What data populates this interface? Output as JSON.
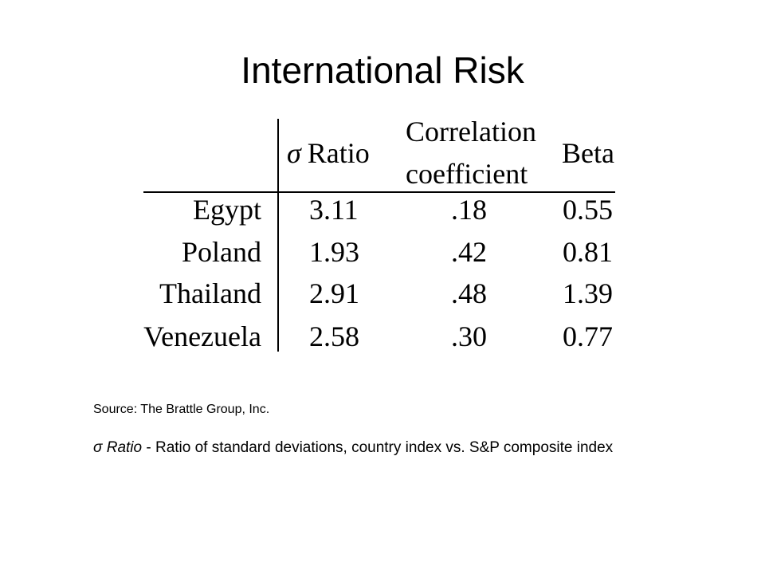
{
  "title": "International Risk",
  "table": {
    "headers": {
      "sigma_symbol": "σ",
      "sigma_label": "Ratio",
      "correlation_line1": "Correlation",
      "correlation_line2": "coefficient",
      "beta": "Beta"
    },
    "rows": [
      {
        "country": "Egypt",
        "sigma_ratio": "3.11",
        "correlation": ".18",
        "beta": "0.55"
      },
      {
        "country": "Poland",
        "sigma_ratio": "1.93",
        "correlation": ".42",
        "beta": "0.81"
      },
      {
        "country": "Thailand",
        "sigma_ratio": "2.91",
        "correlation": ".48",
        "beta": "1.39"
      },
      {
        "country": "Venezuela",
        "sigma_ratio": "2.58",
        "correlation": ".30",
        "beta": "0.77"
      }
    ]
  },
  "source": "Source: The Brattle Group, Inc.",
  "footnote": {
    "term": "σ Ratio",
    "definition": " - Ratio of standard deviations, country index vs. S&P composite index"
  }
}
